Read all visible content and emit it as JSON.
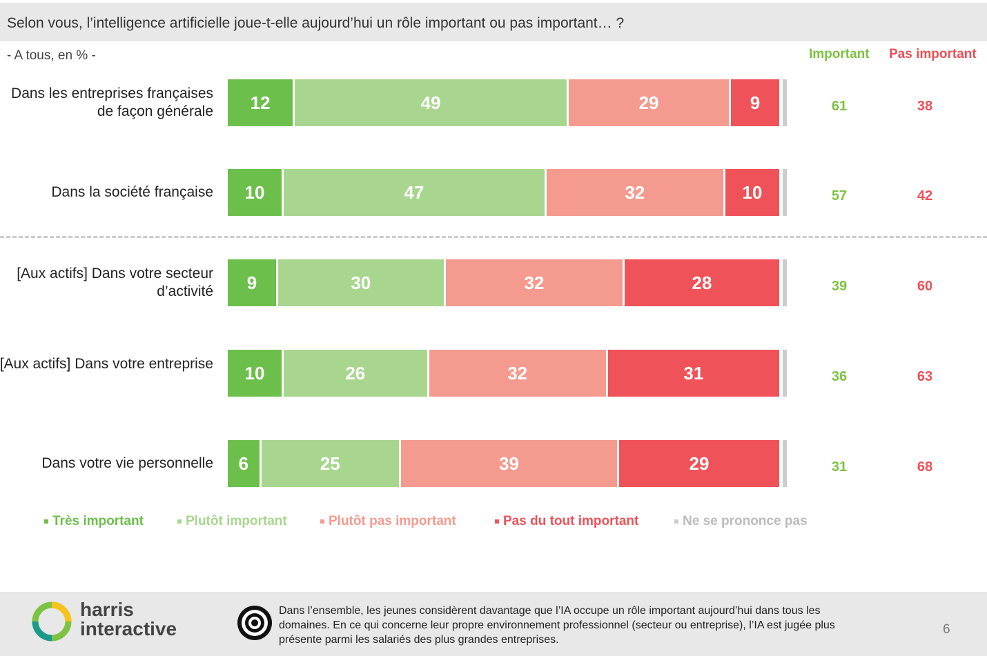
{
  "question": "Selon vous, l’intelligence artificielle joue-t-elle aujourd’hui un rôle important ou pas important… ?",
  "base": "- A tous, en % -",
  "headers": {
    "important": "Important",
    "pas_important": "Pas important"
  },
  "colors": {
    "tres": "#6cbf4a",
    "plutot": "#a8d68f",
    "plutot_pas": "#f59a8f",
    "pas_du_tout": "#ef5258",
    "nsp": "#cccccc"
  },
  "legend": [
    "Très important",
    "Plutôt important",
    "Plutôt pas important",
    "Pas du tout important",
    "Ne se prononce pas"
  ],
  "chart_data": {
    "type": "bar",
    "orientation": "horizontal",
    "stacked": true,
    "xlim": [
      0,
      100
    ],
    "categories": [
      "Dans les entreprises françaises de façon générale",
      "Dans la société française",
      "[Aux actifs] Dans votre secteur d’activité",
      "[Aux actifs] Dans votre entreprise",
      "Dans votre vie personnelle"
    ],
    "series": [
      {
        "name": "Très important",
        "values": [
          12,
          10,
          9,
          10,
          6
        ]
      },
      {
        "name": "Plutôt important",
        "values": [
          49,
          47,
          30,
          26,
          25
        ]
      },
      {
        "name": "Plutôt pas important",
        "values": [
          29,
          32,
          32,
          32,
          39
        ]
      },
      {
        "name": "Pas du tout important",
        "values": [
          9,
          10,
          28,
          31,
          29
        ]
      },
      {
        "name": "Ne se prononce pas",
        "values": [
          1,
          1,
          1,
          1,
          1
        ]
      }
    ],
    "totals": {
      "important": [
        61,
        57,
        39,
        36,
        31
      ],
      "pas_important": [
        38,
        42,
        60,
        63,
        68
      ]
    }
  },
  "footer": {
    "logo_line1": "harris",
    "logo_line2": "interactive",
    "note": "Dans l’ensemble, les jeunes considèrent davantage que l’IA occupe un rôle important aujourd’hui dans tous les domaines. En ce qui concerne leur propre environnement professionnel (secteur ou entreprise), l’IA est jugée plus présente parmi les salariés des plus grandes entreprises.",
    "page": "6"
  }
}
